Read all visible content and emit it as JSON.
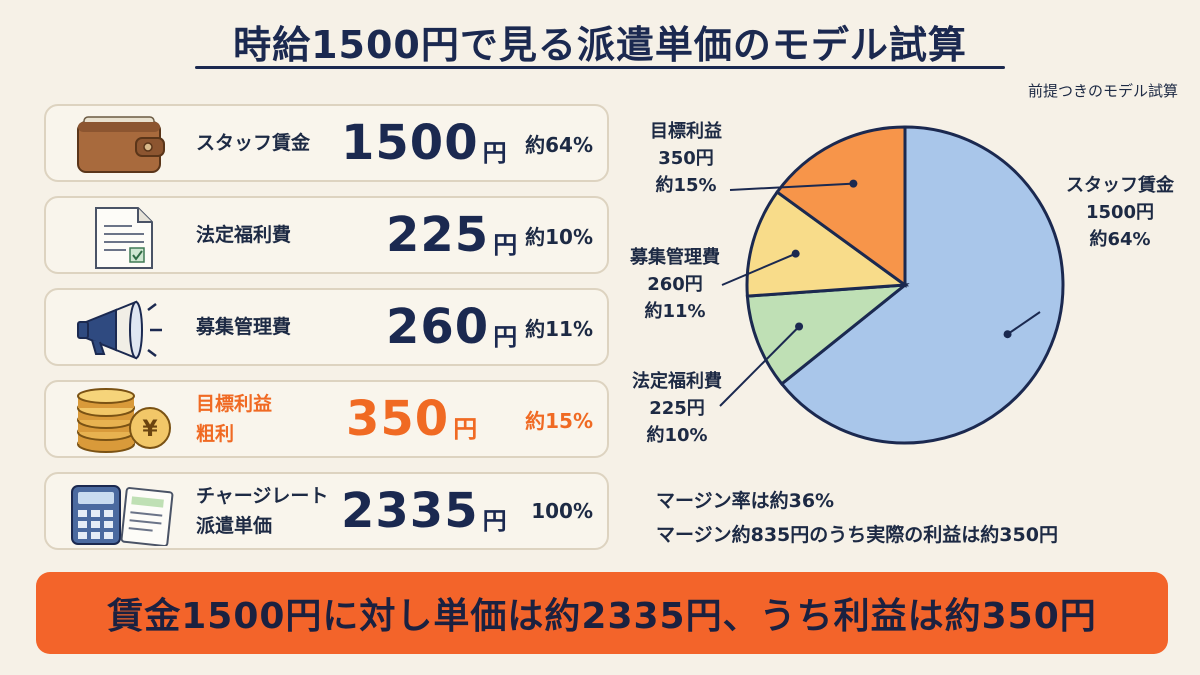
{
  "title": "時給1500円で見る派遣単価のモデル試算",
  "note": "前提つきのモデル試算",
  "rows": [
    {
      "label_lines": [
        "スタッフ賃金"
      ],
      "amount": "1500",
      "unit": "円",
      "pct": "約64%",
      "icon": "wallet-icon"
    },
    {
      "label_lines": [
        "法定福利費"
      ],
      "amount": "225",
      "unit": "円",
      "pct": "約10%",
      "icon": "document-icon"
    },
    {
      "label_lines": [
        "募集管理費"
      ],
      "amount": "260",
      "unit": "円",
      "pct": "約11%",
      "icon": "megaphone-icon"
    },
    {
      "label_lines": [
        "目標利益",
        "粗利"
      ],
      "amount": "350",
      "unit": "円",
      "pct": "約15%",
      "icon": "coins-icon",
      "highlight_color": "#f06a23"
    },
    {
      "label_lines": [
        "チャージレート",
        "派遣単価"
      ],
      "amount": "2335",
      "unit": "円",
      "pct": "100%",
      "icon": "calculator-icon"
    }
  ],
  "chart_data": {
    "type": "pie",
    "title": "",
    "slices": [
      {
        "name": "スタッフ賃金",
        "value": 1500,
        "value_label": "1500円",
        "pct_label": "約64%",
        "color": "#a9c6ea"
      },
      {
        "name": "法定福利費",
        "value": 225,
        "value_label": "225円",
        "pct_label": "約10%",
        "color": "#bfe0b5"
      },
      {
        "name": "募集管理費",
        "value": 260,
        "value_label": "260円",
        "pct_label": "約11%",
        "color": "#f8dc8a"
      },
      {
        "name": "目標利益",
        "value": 350,
        "value_label": "350円",
        "pct_label": "約15%",
        "color": "#f7954a"
      }
    ]
  },
  "margin": {
    "line1": "マージン率は約36%",
    "line2": "マージン約835円のうち実際の利益は約350円"
  },
  "banner": "賃金1500円に対し単価は約2335円、うち利益は約350円"
}
